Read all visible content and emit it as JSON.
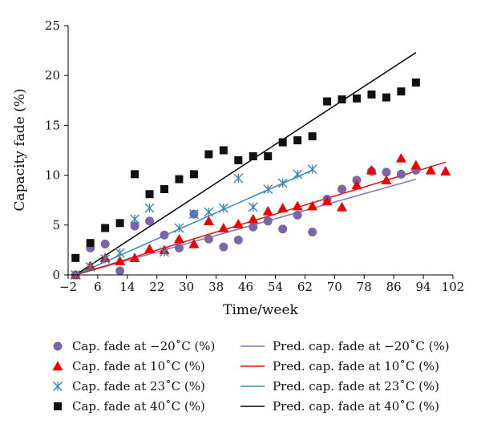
{
  "chart_data": {
    "type": "scatter",
    "title": "",
    "xlabel": "Time/week",
    "ylabel": "Capacity fade (%)",
    "xlim": [
      -2,
      102
    ],
    "ylim": [
      0,
      25
    ],
    "xticks": [
      "-2",
      "6",
      "14",
      "22",
      "30",
      "38",
      "46",
      "54",
      "62",
      "70",
      "78",
      "86",
      "94",
      "102"
    ],
    "yticks": [
      "0",
      "5",
      "10",
      "15",
      "20",
      "25"
    ],
    "legend_position": "bottom",
    "series": [
      {
        "name": "Cap. fade at −20˚C (%)",
        "marker": "circle",
        "color": "#7b64a8",
        "points": [
          [
            0,
            0
          ],
          [
            4,
            2.7
          ],
          [
            8,
            3.1
          ],
          [
            12,
            0.4
          ],
          [
            16,
            4.9
          ],
          [
            20,
            5.4
          ],
          [
            24,
            4.0
          ],
          [
            28,
            2.7
          ],
          [
            32,
            6.1
          ],
          [
            36,
            3.6
          ],
          [
            40,
            2.8
          ],
          [
            44,
            3.5
          ],
          [
            48,
            4.8
          ],
          [
            52,
            5.4
          ],
          [
            56,
            4.6
          ],
          [
            60,
            6.0
          ],
          [
            64,
            4.3
          ],
          [
            68,
            7.6
          ],
          [
            72,
            8.6
          ],
          [
            76,
            9.5
          ],
          [
            80,
            10.4
          ],
          [
            84,
            10.3
          ],
          [
            88,
            10.1
          ],
          [
            92,
            10.5
          ]
        ]
      },
      {
        "name": "Cap. fade at 10˚C (%)",
        "marker": "triangle",
        "color": "#ee0000",
        "points": [
          [
            0,
            0
          ],
          [
            4,
            0.9
          ],
          [
            8,
            1.7
          ],
          [
            12,
            1.4
          ],
          [
            16,
            1.7
          ],
          [
            20,
            2.6
          ],
          [
            24,
            2.5
          ],
          [
            28,
            3.6
          ],
          [
            32,
            3.1
          ],
          [
            36,
            5.4
          ],
          [
            40,
            4.7
          ],
          [
            44,
            5.1
          ],
          [
            48,
            5.6
          ],
          [
            52,
            6.4
          ],
          [
            56,
            6.7
          ],
          [
            60,
            6.9
          ],
          [
            64,
            6.9
          ],
          [
            68,
            7.4
          ],
          [
            72,
            6.8
          ],
          [
            76,
            9.0
          ],
          [
            80,
            10.5
          ],
          [
            84,
            9.5
          ],
          [
            88,
            11.7
          ],
          [
            92,
            11.0
          ],
          [
            96,
            10.5
          ],
          [
            100,
            10.4
          ]
        ]
      },
      {
        "name": "Cap. fade at 23˚C (%)",
        "marker": "asterisk",
        "color": "#3a86b8",
        "points": [
          [
            0,
            0
          ],
          [
            4,
            0.8
          ],
          [
            8,
            1.6
          ],
          [
            12,
            2.2
          ],
          [
            16,
            5.6
          ],
          [
            20,
            6.7
          ],
          [
            24,
            2.3
          ],
          [
            28,
            4.7
          ],
          [
            32,
            6.1
          ],
          [
            36,
            6.3
          ],
          [
            40,
            6.7
          ],
          [
            44,
            9.7
          ],
          [
            48,
            6.8
          ],
          [
            52,
            8.6
          ],
          [
            56,
            9.2
          ],
          [
            60,
            10.1
          ],
          [
            64,
            10.6
          ]
        ]
      },
      {
        "name": "Cap. fade at 40˚C (%)",
        "marker": "square",
        "color": "#111111",
        "points": [
          [
            0,
            1.7
          ],
          [
            4,
            3.2
          ],
          [
            8,
            4.7
          ],
          [
            12,
            5.2
          ],
          [
            16,
            10.1
          ],
          [
            20,
            8.1
          ],
          [
            24,
            8.6
          ],
          [
            28,
            9.6
          ],
          [
            32,
            10.1
          ],
          [
            36,
            12.1
          ],
          [
            40,
            12.5
          ],
          [
            44,
            11.5
          ],
          [
            48,
            11.9
          ],
          [
            52,
            11.9
          ],
          [
            56,
            13.3
          ],
          [
            60,
            13.5
          ],
          [
            64,
            13.9
          ],
          [
            68,
            17.4
          ],
          [
            72,
            17.6
          ],
          [
            76,
            17.7
          ],
          [
            80,
            18.1
          ],
          [
            84,
            17.8
          ],
          [
            88,
            18.4
          ],
          [
            92,
            19.3
          ]
        ]
      }
    ],
    "prediction_lines": [
      {
        "name": "Pred. cap. fade at −20˚C (%)",
        "color": "#8a70b0",
        "x": [
          0,
          92
        ],
        "y": [
          0,
          9.6
        ]
      },
      {
        "name": "Pred. cap. fade at 10˚C (%)",
        "color": "#dd1111",
        "x": [
          0,
          100
        ],
        "y": [
          0,
          11.3
        ]
      },
      {
        "name": "Pred. cap. fade at 23˚C (%)",
        "color": "#3a86b8",
        "x": [
          0,
          64
        ],
        "y": [
          0,
          10.5
        ]
      },
      {
        "name": "Pred. cap. fade at 40˚C (%)",
        "color": "#000000",
        "x": [
          0,
          92
        ],
        "y": [
          0,
          22.3
        ]
      }
    ]
  }
}
